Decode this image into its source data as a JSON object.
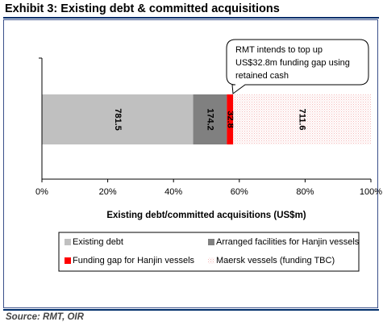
{
  "title": "Exhibit 3: Existing debt & committed acquisitions",
  "source": "Source: RMT, OIR",
  "colors": {
    "frame": "#3a4f8a",
    "rule": "#002e6b"
  },
  "chart_data": {
    "type": "bar",
    "orientation": "horizontal",
    "stacked": "100%",
    "xlabel": "Existing debt/committed acquisitions (US$m)",
    "ylabel": "",
    "xlim": [
      0,
      100
    ],
    "x_ticks": [
      "0%",
      "20%",
      "40%",
      "60%",
      "80%",
      "100%"
    ],
    "grid": false,
    "legend_position": "bottom",
    "series": [
      {
        "name": "Existing debt",
        "value": 781.5,
        "label": "781.5",
        "color": "#c0c0c0",
        "pattern": "solid"
      },
      {
        "name": "Arranged facilities for Hanjin vessels",
        "value": 174.2,
        "label": "174.2",
        "color": "#808080",
        "pattern": "solid"
      },
      {
        "name": "Funding gap for Hanjin vessels",
        "value": 32.8,
        "label": "32.8",
        "color": "#ff0000",
        "pattern": "solid"
      },
      {
        "name": "Maersk vessels (funding TBC)",
        "value": 711.6,
        "label": "711.6",
        "color": "#f4c2c2",
        "pattern": "dotted"
      }
    ],
    "annotation": {
      "lines": [
        "RMT intends to top up",
        "US$32.8m funding gap using",
        "retained cash"
      ]
    }
  }
}
